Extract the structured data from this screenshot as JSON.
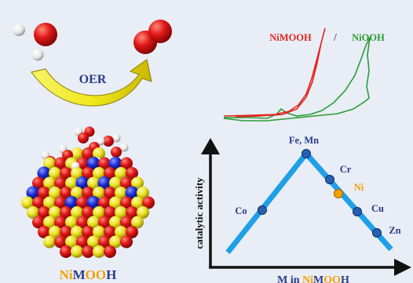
{
  "oer_label": "OER",
  "material_label": {
    "part1": "Ni",
    "part2": "M",
    "part3": "OO",
    "part4": "H"
  },
  "plot": {
    "legend_nimooh": "NiMOOH",
    "legend_sep": "/",
    "legend_niooh": "NiOOH"
  },
  "volcano": {
    "y_label": "catalytic activity",
    "x_label": {
      "prefix": "M in ",
      "part1": "Ni",
      "part2": "M",
      "part3": "OO",
      "part4": "H"
    },
    "points": {
      "co": "Co",
      "fe_mn": "Fe, Mn",
      "cr": "Cr",
      "ni": "Ni",
      "cu": "Cu",
      "zn": "Zn"
    }
  },
  "colors": {
    "background": "#e9edf6",
    "nimooh_curve": "#e0261f",
    "niooh_curve": "#2a9d35",
    "arrow": "#f3ef2a",
    "volcano_line": "#1fa0e6",
    "point": "#2660b0",
    "ni_point": "#f2a100",
    "label_blue": "#2a3c86",
    "label_orange": "#f2a100",
    "oxygen": "#d41414",
    "hydrogen": "#f2f2f2",
    "nickel": "#ece321",
    "metal": "#1a2ad0"
  }
}
